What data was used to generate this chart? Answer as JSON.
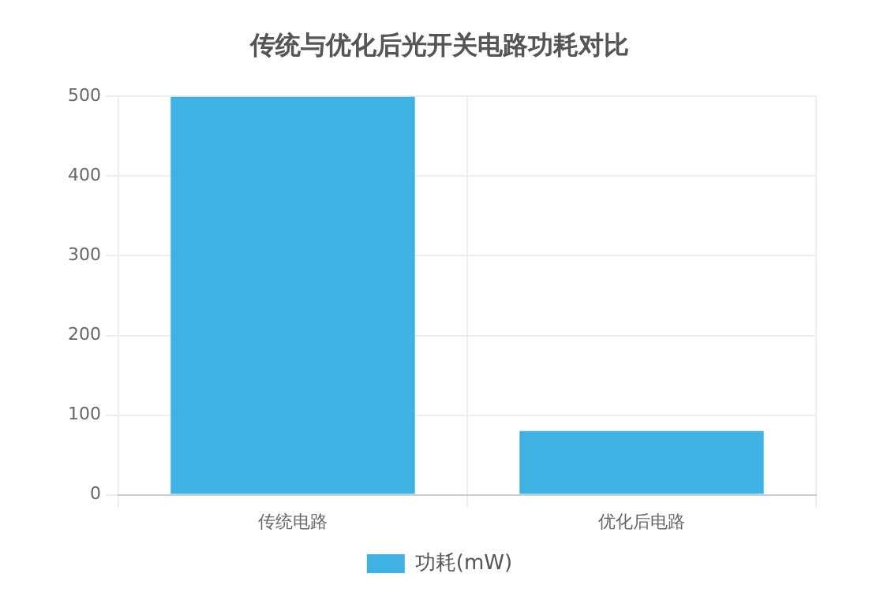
{
  "chart_data": {
    "type": "bar",
    "title": "传统与优化后光开关电路功耗对比",
    "categories": [
      "传统电路",
      "优化后电路"
    ],
    "series": [
      {
        "name": "功耗(mW)",
        "color": "#3fb1e3",
        "values": [
          500,
          80
        ]
      }
    ],
    "ylim": [
      0,
      500
    ],
    "yticks": [
      0,
      100,
      200,
      300,
      400,
      500
    ],
    "grid": true,
    "legend": "bottom"
  }
}
